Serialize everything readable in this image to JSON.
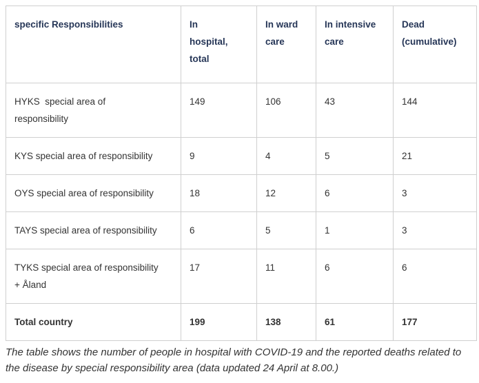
{
  "table": {
    "columns": [
      "specific Responsibilities",
      "In\nhospital,\ntotal",
      "In ward\ncare",
      "In intensive\ncare",
      "Dead\n(cumulative)"
    ],
    "rows": [
      {
        "label": "HYKS  special area of\nresponsibility",
        "values": [
          "149",
          "106",
          "43",
          "144"
        ]
      },
      {
        "label": "KYS special area of responsibility",
        "values": [
          "9",
          "4",
          "5",
          "21"
        ]
      },
      {
        "label": "OYS special area of responsibility",
        "values": [
          "18",
          "12",
          "6",
          "3"
        ]
      },
      {
        "label": "TAYS special area of responsibility",
        "values": [
          "6",
          "5",
          "1",
          "3"
        ]
      },
      {
        "label": "TYKS special area of responsibility\n+ Åland",
        "values": [
          "17",
          "11",
          "6",
          "6"
        ]
      },
      {
        "label": "Total country",
        "values": [
          "199",
          "138",
          "61",
          "177"
        ]
      }
    ]
  },
  "caption": "The table shows the number of people in hospital with COVID-19 and the reported deaths related to the disease by special responsibility area (data updated 24 April at 8.00.)",
  "colors": {
    "background": "#ffffff",
    "border": "#cfcfcf",
    "header_text": "#263657",
    "body_text": "#333333"
  }
}
